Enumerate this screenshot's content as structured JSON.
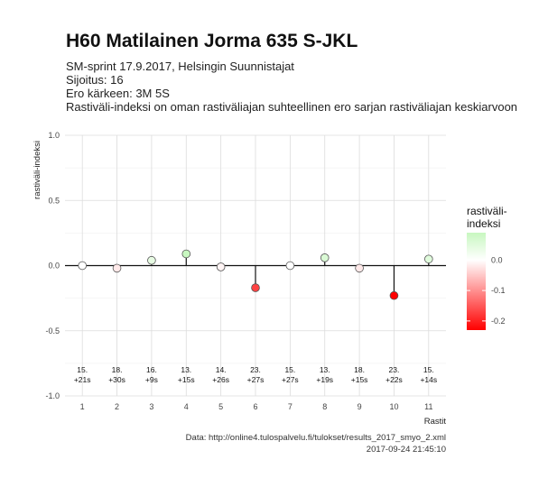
{
  "header": {
    "title": "H60 Matilainen Jorma 635 S-JKL",
    "subtitle_lines": [
      "SM-sprint 17.9.2017, Helsingin Suunnistajat",
      "Sijoitus: 16",
      "Ero kärkeen: 3M 5S",
      "Rastiväli-indeksi on oman rastiväliajan suhteellinen ero sarjan rastiväliajan keskiarvoon"
    ]
  },
  "caption": {
    "source": "Data: http://online4.tulospalvelu.fi/tulokset/results_2017_smyo_2.xml",
    "timestamp": "2017-09-24 21:45:10"
  },
  "chart_data": {
    "type": "scatter",
    "title": "H60 Matilainen Jorma 635 S-JKL",
    "xlabel": "Rastit",
    "ylabel": "rastiväli-indeksi",
    "x": [
      1,
      2,
      3,
      4,
      5,
      6,
      7,
      8,
      9,
      10,
      11
    ],
    "y": [
      0.0,
      -0.02,
      0.04,
      0.09,
      -0.01,
      -0.17,
      0.0,
      0.06,
      -0.02,
      -0.23,
      0.05
    ],
    "annotations": [
      [
        "15.",
        "+21s"
      ],
      [
        "18.",
        "+30s"
      ],
      [
        "16.",
        "+9s"
      ],
      [
        "13.",
        "+15s"
      ],
      [
        "14.",
        "+26s"
      ],
      [
        "23.",
        "+27s"
      ],
      [
        "15.",
        "+27s"
      ],
      [
        "13.",
        "+19s"
      ],
      [
        "18.",
        "+15s"
      ],
      [
        "23.",
        "+22s"
      ],
      [
        "15.",
        "+14s"
      ]
    ],
    "ylim": [
      -1.0,
      1.0
    ],
    "yticks": [
      1.0,
      0.5,
      0.0,
      -0.5,
      -1.0
    ],
    "ytick_labels": [
      "1.0",
      "0.5",
      "0.0",
      "-0.5",
      "-1.0"
    ],
    "xticks": [
      "1",
      "2",
      "3",
      "4",
      "5",
      "6",
      "7",
      "8",
      "9",
      "10",
      "11"
    ],
    "grid": true,
    "baseline": 0.0,
    "legend": {
      "title_lines": [
        "rastiväli-",
        "indeksi"
      ],
      "position": "right",
      "tick_values": [
        0.0,
        -0.1,
        -0.2
      ],
      "tick_labels": [
        "0.0",
        "-0.1",
        "-0.2"
      ],
      "range": [
        -0.23,
        0.09
      ],
      "colors": {
        "low": "#ff0000",
        "mid": "#ffffff",
        "high": "#c8f7c0"
      }
    }
  }
}
